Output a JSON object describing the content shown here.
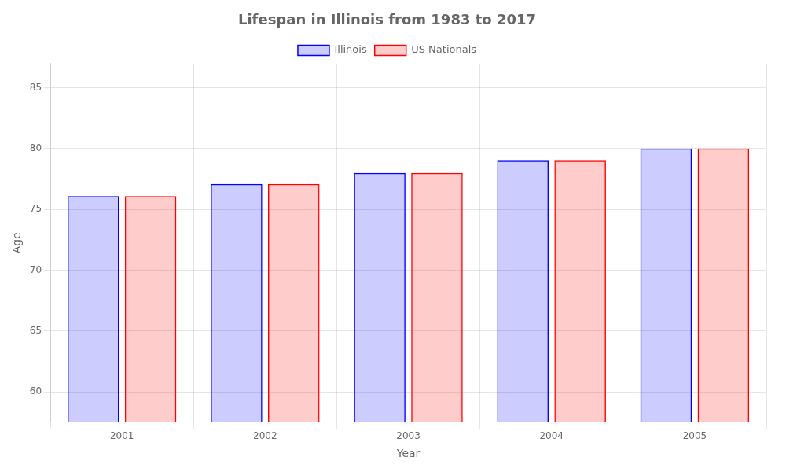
{
  "chart_data": {
    "type": "bar",
    "title": "Lifespan in Illinois from 1983 to 2017",
    "x_label": "Year",
    "y_label": "Age",
    "categories": [
      "2001",
      "2002",
      "2003",
      "2004",
      "2005"
    ],
    "series": [
      {
        "name": "Illinois",
        "color": "#0000ff",
        "values": [
          76.1,
          77.1,
          78.0,
          79.0,
          80.0
        ]
      },
      {
        "name": "US Nationals",
        "color": "#ff0000",
        "values": [
          76.1,
          77.1,
          78.0,
          79.0,
          80.0
        ]
      }
    ],
    "ylim": [
      57.5,
      87
    ],
    "yticks": [
      60,
      65,
      70,
      75,
      80,
      85
    ],
    "grid": true,
    "legend": "top"
  }
}
